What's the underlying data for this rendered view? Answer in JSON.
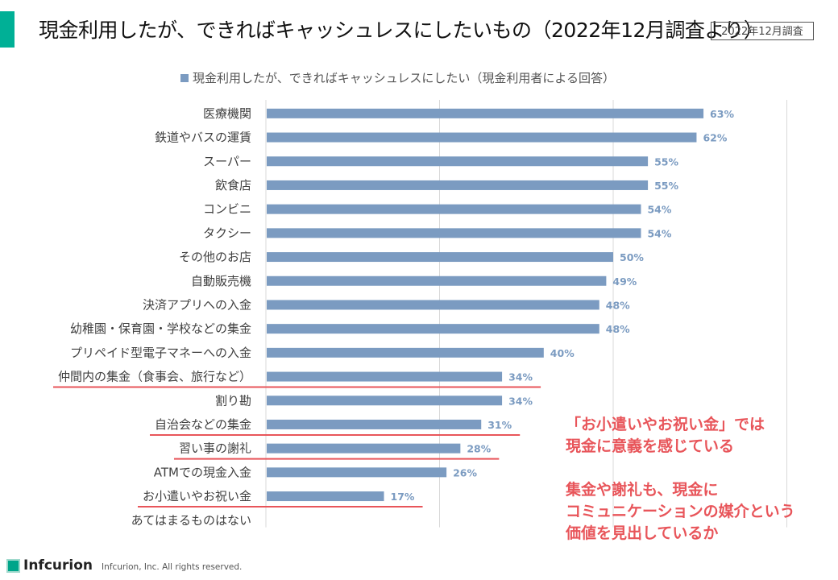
{
  "header": {
    "title": "現金利用したが、できればキャッシュレスにしたいもの（2022年12月調査より）",
    "date_badge": "2022年12月調査"
  },
  "chart_data": {
    "type": "bar",
    "orientation": "horizontal",
    "title": "",
    "legend": {
      "label": "現金利用したが、できればキャッシュレスにしたい（現金利用者による回答）",
      "placement": "top"
    },
    "series": [
      {
        "name": "現金利用したが、できればキャッシュレスにしたい（現金利用者による回答）",
        "color": "#7b9bc1",
        "values": [
          63,
          62,
          55,
          55,
          54,
          54,
          50,
          49,
          48,
          48,
          40,
          34,
          34,
          31,
          28,
          26,
          17,
          0
        ],
        "labels": [
          "63%",
          "62%",
          "55%",
          "55%",
          "54%",
          "54%",
          "50%",
          "49%",
          "48%",
          "48%",
          "40%",
          "34%",
          "34%",
          "31%",
          "28%",
          "26%",
          "17%",
          ""
        ]
      }
    ],
    "categories": [
      "医療機関",
      "鉄道やバスの運賃",
      "スーパー",
      "飲食店",
      "コンビニ",
      "タクシー",
      "その他のお店",
      "自動販売機",
      "決済アプリへの入金",
      "幼稚園・保育園・学校などの集金",
      "プリペイド型電子マネーへの入金",
      "仲間内の集金（食事会、旅行など）",
      "割り勘",
      "自治会などの集金",
      "習い事の謝礼",
      "ATMでの現金入金",
      "お小遣いやお祝い金",
      "あてはまるものはない"
    ],
    "highlighted_categories": [
      "仲間内の集金（食事会、旅行など）",
      "自治会などの集金",
      "習い事の謝礼",
      "お小遣いやお祝い金"
    ],
    "highlight_color": "#e8555a",
    "xlim": [
      0,
      75
    ],
    "xgrid_ticks": [
      0,
      25,
      50,
      75
    ],
    "grid": true,
    "xlabel": "",
    "ylabel": ""
  },
  "annotation": {
    "lines_block1": [
      "「お小遣いやお祝い金」では",
      "現金に意義を感じている"
    ],
    "lines_block2": [
      "集金や謝礼も、現金に",
      "コミュニケーションの媒介という",
      "価値を見出しているか"
    ]
  },
  "footer": {
    "brand": "Infcurion",
    "copyright": "Infcurion, Inc.  All rights reserved."
  }
}
